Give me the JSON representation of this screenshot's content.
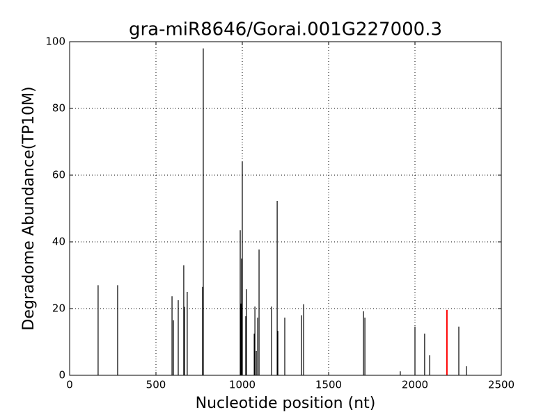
{
  "chart_data": {
    "type": "stem",
    "title": "gra-miR8646/Gorai.001G227000.3",
    "x_label": "Nucleotide position (nt)",
    "y_label": "Degradome Abundance(TP10M)",
    "xlim": [
      0,
      2500
    ],
    "xticks": [
      0,
      500,
      1000,
      1500,
      2000,
      2500
    ],
    "ylim": [
      0,
      100
    ],
    "yticks": [
      0,
      20,
      40,
      60,
      80,
      100
    ],
    "grid": true,
    "series": [
      {
        "color": "#000000",
        "x": [
          165,
          278,
          593,
          601,
          629,
          661,
          665,
          681,
          770,
          774,
          988,
          992,
          996,
          1000,
          1020,
          1024,
          1069,
          1073,
          1081,
          1089,
          1097,
          1169,
          1202,
          1206,
          1246,
          1343,
          1355,
          1702,
          1710,
          1915,
          2000,
          2056,
          2085,
          2254,
          2298
        ],
        "values": [
          27,
          27,
          23.7,
          16.5,
          22.5,
          33,
          20.5,
          25,
          26.5,
          98,
          43.5,
          21.5,
          35,
          64,
          17.7,
          25.8,
          12.5,
          20.6,
          7.3,
          17.3,
          37.7,
          20.6,
          52.3,
          13.3,
          17.3,
          18,
          21.3,
          19.2,
          17.3,
          1.2,
          14.6,
          12.5,
          6,
          14.6,
          2.7
        ]
      },
      {
        "color": "#ff0000",
        "x": [
          2185
        ],
        "values": [
          19.6
        ]
      }
    ]
  }
}
